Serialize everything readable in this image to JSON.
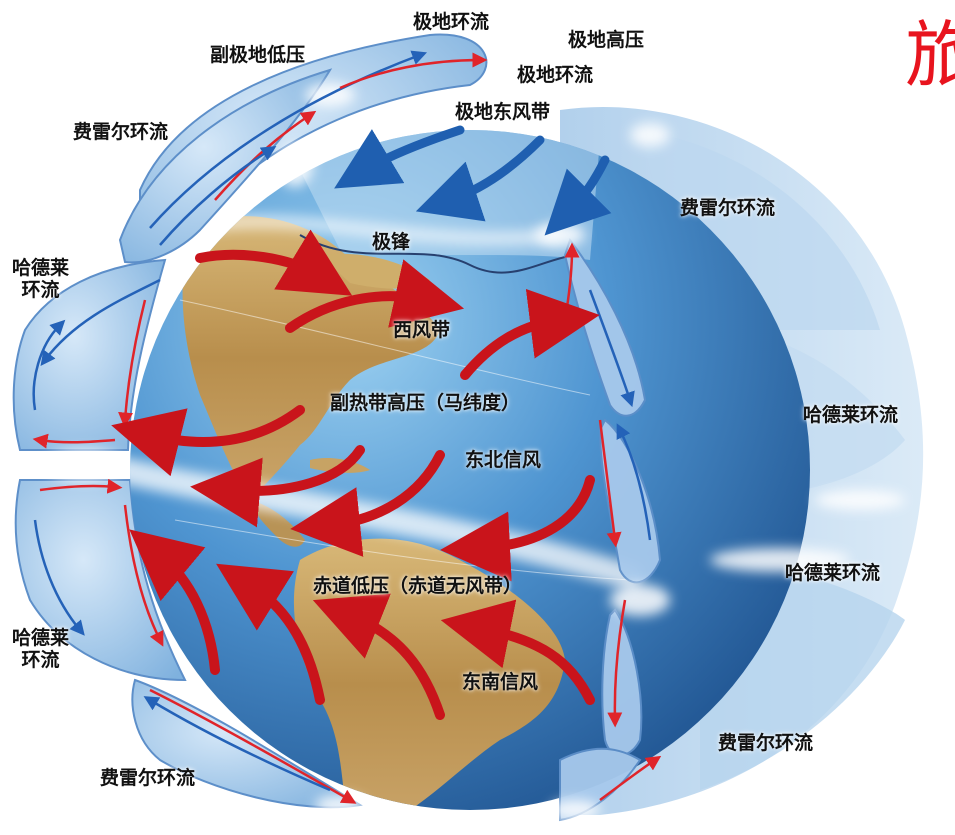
{
  "labels": {
    "polar_cell_top": "极地环流",
    "polar_high": "极地高压",
    "polar_cell": "极地环流",
    "subpolar_low": "副极地低压",
    "polar_easterlies": "极地东风带",
    "ferrel_nw": "费雷尔环流",
    "ferrel_ne": "费雷尔环流",
    "polar_front": "极锋",
    "hadley_w_north": "哈德莱\n环流",
    "westerlies": "西风带",
    "subtropical_high": "副热带高压（马纬度）",
    "hadley_e_north": "哈德莱环流",
    "ne_trades": "东北信风",
    "hadley_e_south": "哈德莱环流",
    "equatorial_low": "赤道低压（赤道无风带）",
    "hadley_w_south": "哈德莱\n环流",
    "se_trades": "东南信风",
    "ferrel_se": "费雷尔环流",
    "ferrel_sw": "费雷尔环流",
    "corner_char": "旅"
  },
  "colors": {
    "ocean": "#3f86c6",
    "land": "#c9a35d",
    "cell": "#9cc4ea",
    "warm_arrow": "#d51c23",
    "cool_arrow": "#1f5fb0"
  }
}
